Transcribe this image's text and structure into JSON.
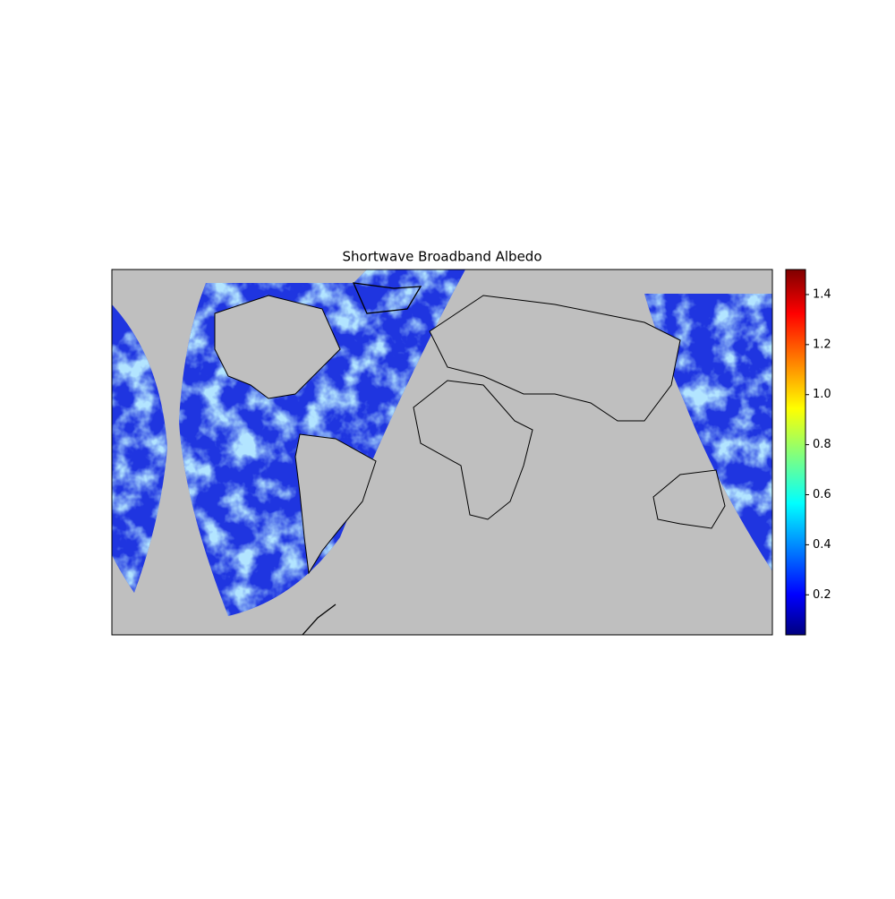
{
  "chart_data": {
    "type": "map",
    "title": "Shortwave Broadband Albedo",
    "colorbar": {
      "lim": [
        0.04,
        1.5
      ],
      "ticks": [
        0.2,
        0.4,
        0.6,
        0.8,
        {
          "value": 1,
          "label": "1.0"
        },
        1.2,
        1.4
      ]
    }
  }
}
